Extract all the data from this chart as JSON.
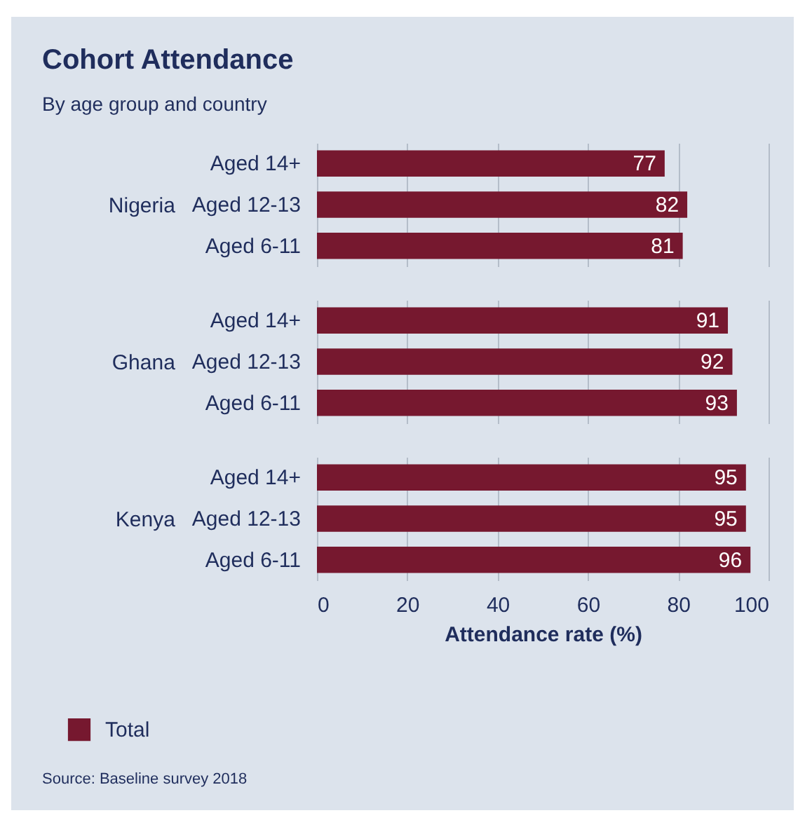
{
  "chart_data": [
    {
      "type": "bar",
      "orientation": "horizontal",
      "title": "Cohort Attendance",
      "subtitle": "By age group and country",
      "ylabel": "Nigeria",
      "categories": [
        "Aged 14+",
        "Aged 12-13",
        "Aged 6-11"
      ],
      "series": [
        {
          "color": "#76182f",
          "values": [
            77,
            82,
            81
          ]
        }
      ],
      "xlim": [
        0,
        100
      ],
      "xticks": [
        0,
        20,
        40,
        60,
        80,
        100
      ],
      "grid": "x",
      "tick_labels": "y",
      "data_labels": true
    },
    {
      "type": "bar",
      "orientation": "horizontal",
      "ylabel": "Ghana",
      "categories": [
        "Aged 14+",
        "Aged 12-13",
        "Aged 6-11"
      ],
      "series": [
        {
          "color": "#76182f",
          "values": [
            91,
            92,
            93
          ]
        }
      ],
      "xlim": [
        0,
        100
      ],
      "xticks": [
        0,
        20,
        40,
        60,
        80,
        100
      ],
      "grid": "x",
      "tick_labels": "y",
      "data_labels": true
    },
    {
      "type": "bar",
      "orientation": "horizontal",
      "ylabel": "Kenya",
      "xlabel": "Attendance rate (%)",
      "categories": [
        "Aged 14+",
        "Aged 12-13",
        "Aged 6-11"
      ],
      "series": [
        {
          "name": "Total",
          "color": "#76182f",
          "values": [
            95,
            95,
            96
          ]
        }
      ],
      "xlim": [
        0,
        100
      ],
      "xticks": [
        0,
        20,
        40,
        60,
        80,
        100
      ],
      "grid": "x",
      "data_labels": true,
      "legend": "bottom left",
      "annotations": [
        "Source: Baseline survey 2018"
      ]
    }
  ]
}
